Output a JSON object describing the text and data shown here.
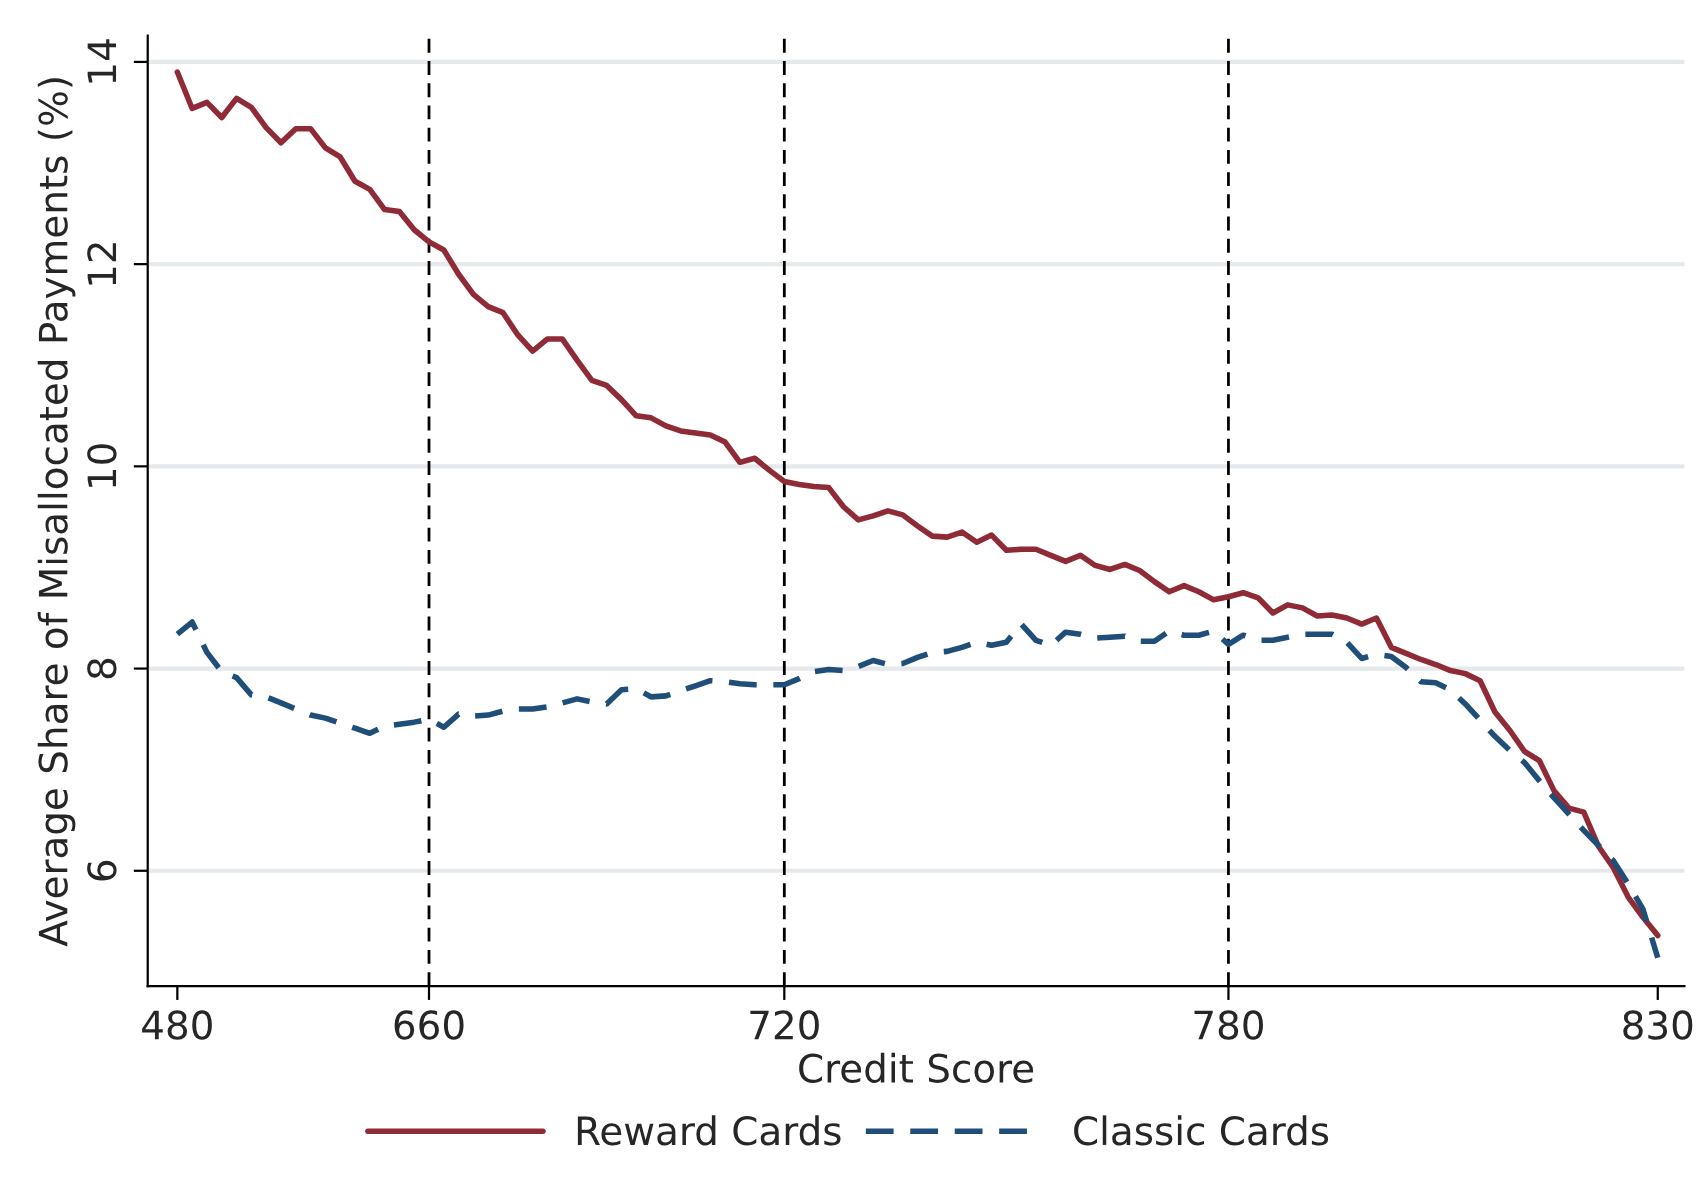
{
  "chart_data": {
    "type": "line",
    "xlabel": "Credit Score",
    "ylabel": "Average Share of Misallocated Payments (%)",
    "categories": [
      "480",
      null,
      null,
      null,
      null,
      null,
      null,
      null,
      null,
      null,
      null,
      null,
      null,
      null,
      null,
      null,
      null,
      "660",
      null,
      null,
      null,
      null,
      null,
      null,
      null,
      null,
      null,
      null,
      null,
      null,
      null,
      null,
      null,
      null,
      null,
      null,
      null,
      null,
      null,
      null,
      null,
      "720",
      null,
      null,
      null,
      null,
      null,
      null,
      null,
      null,
      null,
      null,
      null,
      null,
      null,
      null,
      null,
      null,
      null,
      null,
      null,
      null,
      null,
      null,
      null,
      null,
      null,
      null,
      null,
      null,
      null,
      "780",
      null,
      null,
      null,
      null,
      null,
      null,
      null,
      null,
      null,
      null,
      null,
      null,
      null,
      null,
      null,
      null,
      null,
      null,
      null,
      null,
      null,
      null,
      null,
      null,
      null,
      null,
      null,
      null,
      "830"
    ],
    "ylim": [
      4.86,
      14.26
    ],
    "yticks": [
      6,
      8,
      10,
      12,
      14
    ],
    "grid": "y",
    "legend": "bottom",
    "ref_lines": [
      {
        "axis": "x",
        "value": "660",
        "color": "#000000",
        "line_style": "dashed"
      },
      {
        "axis": "x",
        "value": "720",
        "color": "#000000",
        "line_style": "dashed"
      },
      {
        "axis": "x",
        "value": "780",
        "color": "#000000",
        "line_style": "dashed"
      }
    ],
    "series": [
      {
        "name": "Reward Cards",
        "color": "#8f2a37",
        "line_style": "solid",
        "values": [
          13.9,
          13.54,
          13.6,
          13.45,
          13.64,
          13.55,
          13.35,
          13.2,
          13.34,
          13.34,
          13.15,
          13.06,
          12.82,
          12.74,
          12.54,
          12.52,
          12.34,
          12.22,
          12.14,
          11.9,
          11.7,
          11.58,
          11.52,
          11.3,
          11.14,
          11.26,
          11.26,
          11.05,
          10.85,
          10.8,
          10.66,
          10.5,
          10.48,
          10.4,
          10.35,
          10.33,
          10.31,
          10.24,
          10.04,
          10.08,
          9.96,
          9.85,
          9.82,
          9.8,
          9.79,
          9.6,
          9.47,
          9.51,
          9.56,
          9.52,
          9.41,
          9.31,
          9.3,
          9.35,
          9.25,
          9.32,
          9.17,
          9.18,
          9.18,
          9.12,
          9.06,
          9.12,
          9.02,
          8.98,
          9.03,
          8.97,
          8.86,
          8.76,
          8.82,
          8.76,
          8.68,
          8.71,
          8.75,
          8.7,
          8.55,
          8.63,
          8.6,
          8.52,
          8.53,
          8.5,
          8.44,
          8.5,
          8.21,
          8.15,
          8.09,
          8.04,
          7.98,
          7.95,
          7.88,
          7.57,
          7.39,
          7.18,
          7.09,
          6.79,
          6.62,
          6.58,
          6.24,
          6.03,
          5.74,
          5.54,
          5.36
        ]
      },
      {
        "name": "Classic Cards",
        "color": "#1f4e79",
        "line_style": "dashed",
        "values": [
          8.34,
          8.46,
          8.16,
          7.97,
          7.91,
          7.74,
          7.72,
          7.66,
          7.6,
          7.54,
          7.51,
          7.46,
          7.41,
          7.36,
          7.43,
          7.45,
          7.47,
          7.5,
          7.42,
          7.55,
          7.53,
          7.54,
          7.58,
          7.6,
          7.6,
          7.62,
          7.66,
          7.7,
          7.67,
          7.65,
          7.79,
          7.8,
          7.72,
          7.73,
          7.78,
          7.83,
          7.88,
          7.87,
          7.85,
          7.84,
          7.84,
          7.84,
          7.9,
          7.97,
          7.99,
          7.98,
          8.02,
          8.08,
          8.04,
          8.05,
          8.11,
          8.16,
          8.17,
          8.21,
          8.26,
          8.23,
          8.26,
          8.44,
          8.28,
          8.23,
          8.36,
          8.34,
          8.3,
          8.31,
          8.32,
          8.27,
          8.27,
          8.37,
          8.33,
          8.33,
          8.37,
          8.24,
          8.33,
          8.28,
          8.28,
          8.31,
          8.34,
          8.34,
          8.34,
          8.26,
          8.1,
          8.14,
          8.12,
          8.01,
          7.87,
          7.86,
          7.79,
          7.65,
          7.49,
          7.33,
          7.19,
          7.07,
          6.89,
          6.72,
          6.56,
          6.4,
          6.25,
          6.1,
          5.87,
          5.62,
          5.14
        ]
      }
    ]
  }
}
